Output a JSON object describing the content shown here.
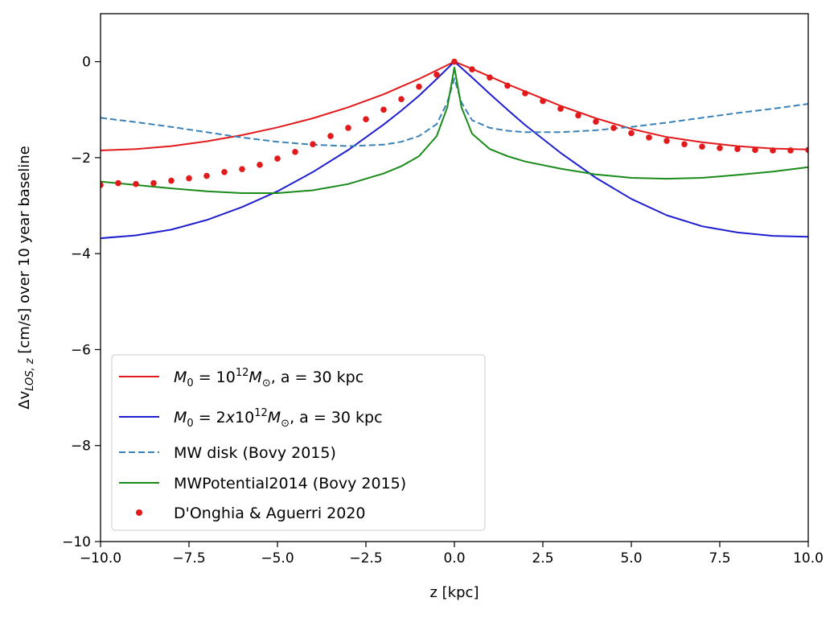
{
  "chart_data": {
    "type": "line",
    "xlabel": "z [kpc]",
    "ylabel": "Δv_LOS,z [cm/s] over 10 year baseline",
    "xlim": [
      -10,
      10
    ],
    "ylim": [
      -10,
      1
    ],
    "x_ticks": [
      -10,
      -7.5,
      -5,
      -2.5,
      0,
      2.5,
      5,
      7.5,
      10
    ],
    "x_tick_labels": [
      "−10.0",
      "−7.5",
      "−5.0",
      "−2.5",
      "0.0",
      "2.5",
      "5.0",
      "7.5",
      "10.0"
    ],
    "y_ticks": [
      -10,
      -8,
      -6,
      -4,
      -2,
      0
    ],
    "y_tick_labels": [
      "−10",
      "−8",
      "−6",
      "−4",
      "−2",
      "0"
    ],
    "grid": false,
    "legend_position": "lower-left",
    "series": [
      {
        "name": "M0 = 10^12 M⊙, a = 30 kpc",
        "style": "solid",
        "color": "#e31a1c",
        "x": [
          -10,
          -9,
          -8,
          -7,
          -6,
          -5,
          -4,
          -3,
          -2,
          -1.5,
          -1,
          -0.5,
          0,
          0.5,
          1,
          1.5,
          2,
          3,
          4,
          5,
          6,
          7,
          8,
          9,
          10
        ],
        "y": [
          -1.85,
          -1.82,
          -1.76,
          -1.66,
          -1.53,
          -1.37,
          -1.18,
          -0.95,
          -0.68,
          -0.52,
          -0.36,
          -0.18,
          0,
          -0.15,
          -0.31,
          -0.47,
          -0.62,
          -0.92,
          -1.18,
          -1.4,
          -1.57,
          -1.68,
          -1.76,
          -1.81,
          -1.83
        ]
      },
      {
        "name": "M0 = 2x10^12 M⊙, a = 30 kpc",
        "style": "solid",
        "color": "#1f1fcf",
        "x": [
          -10,
          -9,
          -8,
          -7,
          -6,
          -5,
          -4,
          -3,
          -2,
          -1.5,
          -1,
          -0.5,
          0,
          0.5,
          1,
          1.5,
          2,
          3,
          4,
          5,
          6,
          7,
          8,
          9,
          10
        ],
        "y": [
          -3.68,
          -3.62,
          -3.5,
          -3.3,
          -3.03,
          -2.7,
          -2.3,
          -1.84,
          -1.31,
          -1.02,
          -0.71,
          -0.36,
          0,
          -0.33,
          -0.67,
          -1.0,
          -1.32,
          -1.9,
          -2.42,
          -2.86,
          -3.2,
          -3.43,
          -3.56,
          -3.63,
          -3.65
        ]
      },
      {
        "name": "MW disk (Bovy 2015)",
        "style": "dashed",
        "color": "#3a82b8",
        "x": [
          -10,
          -9,
          -8,
          -7,
          -6,
          -5,
          -4,
          -3,
          -2,
          -1.5,
          -1,
          -0.5,
          -0.2,
          0,
          0.2,
          0.5,
          1,
          1.5,
          2,
          3,
          4,
          5,
          6,
          7,
          8,
          9,
          10
        ],
        "y": [
          -1.17,
          -1.26,
          -1.36,
          -1.47,
          -1.58,
          -1.67,
          -1.73,
          -1.76,
          -1.73,
          -1.67,
          -1.55,
          -1.3,
          -0.85,
          -0.35,
          -0.85,
          -1.22,
          -1.38,
          -1.44,
          -1.47,
          -1.47,
          -1.43,
          -1.36,
          -1.27,
          -1.17,
          -1.07,
          -0.98,
          -0.88
        ]
      },
      {
        "name": "MWPotential2014 (Bovy 2015)",
        "style": "solid",
        "color": "#1a8a1a",
        "x": [
          -10,
          -9,
          -8,
          -7,
          -6,
          -5,
          -4,
          -3,
          -2,
          -1.5,
          -1,
          -0.5,
          -0.2,
          0,
          0.2,
          0.5,
          1,
          1.5,
          2,
          3,
          4,
          5,
          6,
          7,
          8,
          9,
          10
        ],
        "y": [
          -2.5,
          -2.57,
          -2.64,
          -2.7,
          -2.74,
          -2.74,
          -2.68,
          -2.55,
          -2.33,
          -2.18,
          -1.97,
          -1.55,
          -0.95,
          -0.12,
          -0.95,
          -1.5,
          -1.82,
          -1.97,
          -2.08,
          -2.23,
          -2.35,
          -2.42,
          -2.44,
          -2.42,
          -2.36,
          -2.29,
          -2.2
        ]
      },
      {
        "name": "D'Onghia & Aguerri 2020",
        "style": "dots",
        "color": "#e31a1c",
        "x": [
          -10,
          -9.5,
          -9,
          -8.5,
          -8,
          -7.5,
          -7,
          -6.5,
          -6,
          -5.5,
          -5,
          -4.5,
          -4,
          -3.5,
          -3,
          -2.5,
          -2,
          -1.5,
          -1,
          -0.5,
          0,
          0.5,
          1,
          1.5,
          2,
          2.5,
          3,
          3.5,
          4,
          4.5,
          5,
          5.5,
          6,
          6.5,
          7,
          7.5,
          8,
          8.5,
          9,
          9.5,
          10
        ],
        "y": [
          -2.57,
          -2.53,
          -2.55,
          -2.53,
          -2.48,
          -2.43,
          -2.38,
          -2.3,
          -2.24,
          -2.15,
          -2.02,
          -1.88,
          -1.72,
          -1.55,
          -1.38,
          -1.2,
          -1.0,
          -0.78,
          -0.52,
          -0.27,
          0,
          -0.16,
          -0.33,
          -0.5,
          -0.66,
          -0.82,
          -0.98,
          -1.12,
          -1.25,
          -1.38,
          -1.49,
          -1.58,
          -1.65,
          -1.72,
          -1.77,
          -1.8,
          -1.82,
          -1.84,
          -1.85,
          -1.85,
          -1.84
        ]
      }
    ]
  }
}
